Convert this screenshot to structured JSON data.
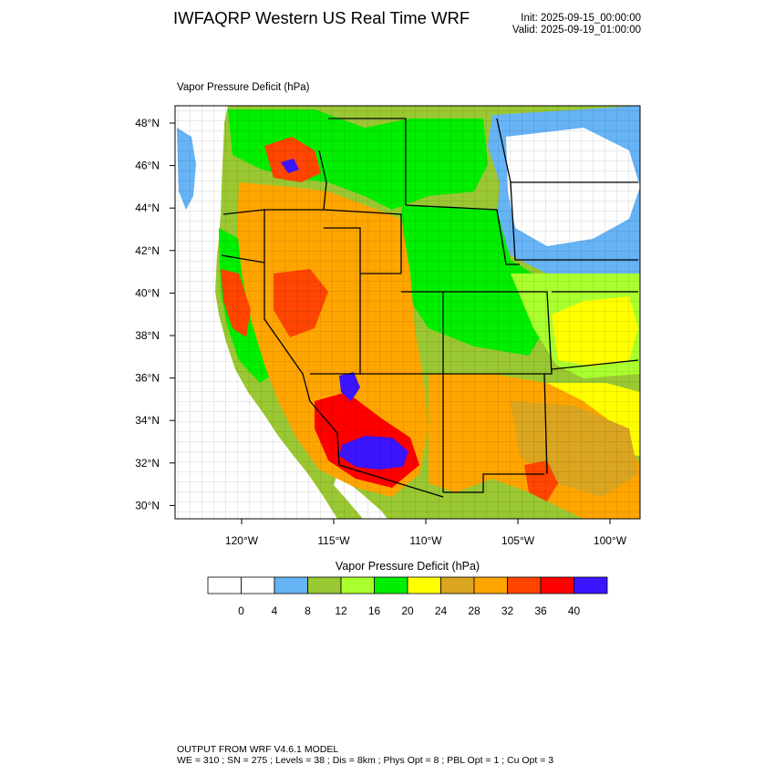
{
  "header": {
    "title": "IWFAQRP Western US Real Time WRF",
    "init": "Init: 2025-09-15_00:00:00",
    "valid": "Valid: 2025-09-19_01:00:00"
  },
  "field_label": "Vapor Pressure Deficit   (hPa)",
  "map": {
    "lat_labels": [
      "48°N",
      "46°N",
      "44°N",
      "42°N",
      "40°N",
      "38°N",
      "36°N",
      "34°N",
      "32°N",
      "30°N"
    ],
    "lon_labels": [
      "120°W",
      "115°W",
      "110°W",
      "105°W",
      "100°W"
    ],
    "state_border_color": "#000000",
    "water_color": "#ffffff"
  },
  "colorbar": {
    "title": "Vapor Pressure Deficit  (hPa)",
    "colors": [
      "#ffffff",
      "#ffffff",
      "#66b3f5",
      "#9ac832",
      "#aaff2e",
      "#00ee00",
      "#ffff00",
      "#daa520",
      "#ffa500",
      "#ff4500",
      "#ff0000",
      "#3c14ff"
    ],
    "tick_labels": [
      "0",
      "4",
      "8",
      "12",
      "16",
      "20",
      "24",
      "28",
      "32",
      "36",
      "40"
    ]
  },
  "footer": {
    "line1": "OUTPUT FROM WRF V4.6.1 MODEL",
    "line2": "WE = 310 ; SN = 275 ; Levels = 38 ; Dis = 8km ; Phys Opt = 8 ; PBL Opt = 1 ; Cu Opt = 3"
  }
}
